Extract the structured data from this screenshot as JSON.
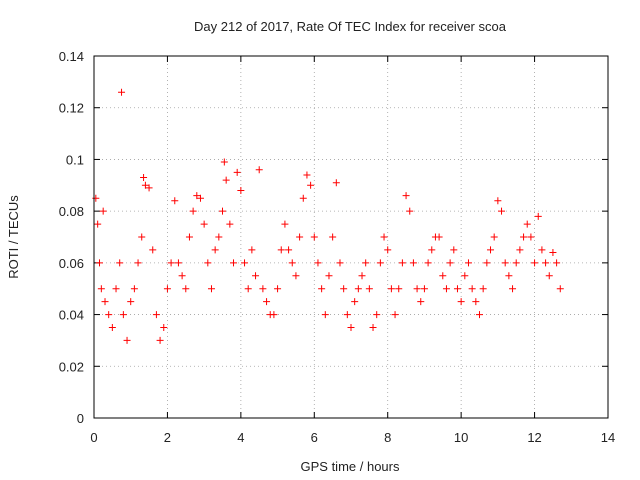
{
  "chart_data": {
    "type": "scatter",
    "title": "Day 212 of 2017, Rate Of TEC Index for receiver scoa",
    "xlabel": "GPS time / hours",
    "ylabel": "ROTI / TECUs",
    "xlim": [
      0,
      14
    ],
    "ylim": [
      0,
      0.14
    ],
    "x_ticks": [
      "0",
      "2",
      "4",
      "6",
      "8",
      "10",
      "12",
      "14"
    ],
    "y_ticks": [
      "0",
      "0.02",
      "0.04",
      "0.06",
      "0.08",
      "0.1",
      "0.12",
      "0.14"
    ],
    "grid": true,
    "marker": "+",
    "color": "#ff0000",
    "series": [
      {
        "x": [
          0.05,
          0.1,
          0.15,
          0.2,
          0.25,
          0.3,
          0.4,
          0.5,
          0.6,
          0.7,
          0.75,
          0.8,
          0.9,
          1.0,
          1.1,
          1.2,
          1.3,
          1.35,
          1.4,
          1.5,
          1.6,
          1.7,
          1.8,
          1.9,
          2.0,
          2.1,
          2.2,
          2.3,
          2.4,
          2.5,
          2.6,
          2.7,
          2.8,
          2.9,
          3.0,
          3.1,
          3.2,
          3.3,
          3.4,
          3.5,
          3.55,
          3.6,
          3.7,
          3.8,
          3.9,
          4.0,
          4.1,
          4.2,
          4.3,
          4.4,
          4.5,
          4.6,
          4.7,
          4.8,
          4.9,
          5.0,
          5.1,
          5.2,
          5.3,
          5.4,
          5.5,
          5.6,
          5.7,
          5.8,
          5.9,
          6.0,
          6.1,
          6.2,
          6.3,
          6.4,
          6.5,
          6.6,
          6.7,
          6.8,
          6.9,
          7.0,
          7.1,
          7.2,
          7.3,
          7.4,
          7.5,
          7.6,
          7.7,
          7.8,
          7.9,
          8.0,
          8.1,
          8.2,
          8.3,
          8.4,
          8.5,
          8.6,
          8.7,
          8.8,
          8.9,
          9.0,
          9.1,
          9.2,
          9.3,
          9.4,
          9.5,
          9.6,
          9.7,
          9.8,
          9.9,
          10.0,
          10.1,
          10.2,
          10.3,
          10.4,
          10.5,
          10.6,
          10.7,
          10.8,
          10.9,
          11.0,
          11.1,
          11.2,
          11.3,
          11.4,
          11.5,
          11.6,
          11.7,
          11.8,
          11.9,
          12.0,
          12.1,
          12.2,
          12.3,
          12.4,
          12.5,
          12.6,
          12.7
        ],
        "y": [
          0.085,
          0.075,
          0.06,
          0.05,
          0.08,
          0.045,
          0.04,
          0.035,
          0.05,
          0.06,
          0.126,
          0.04,
          0.03,
          0.045,
          0.05,
          0.06,
          0.07,
          0.093,
          0.09,
          0.089,
          0.065,
          0.04,
          0.03,
          0.035,
          0.05,
          0.06,
          0.084,
          0.06,
          0.055,
          0.05,
          0.07,
          0.08,
          0.086,
          0.085,
          0.075,
          0.06,
          0.05,
          0.065,
          0.07,
          0.08,
          0.099,
          0.092,
          0.075,
          0.06,
          0.095,
          0.088,
          0.06,
          0.05,
          0.065,
          0.055,
          0.096,
          0.05,
          0.045,
          0.04,
          0.04,
          0.05,
          0.065,
          0.075,
          0.065,
          0.06,
          0.055,
          0.07,
          0.085,
          0.094,
          0.09,
          0.07,
          0.06,
          0.05,
          0.04,
          0.055,
          0.07,
          0.091,
          0.06,
          0.05,
          0.04,
          0.035,
          0.045,
          0.05,
          0.055,
          0.06,
          0.05,
          0.035,
          0.04,
          0.06,
          0.07,
          0.065,
          0.05,
          0.04,
          0.05,
          0.06,
          0.086,
          0.08,
          0.06,
          0.05,
          0.045,
          0.05,
          0.06,
          0.065,
          0.07,
          0.07,
          0.055,
          0.05,
          0.06,
          0.065,
          0.05,
          0.045,
          0.055,
          0.06,
          0.05,
          0.045,
          0.04,
          0.05,
          0.06,
          0.065,
          0.07,
          0.084,
          0.08,
          0.06,
          0.055,
          0.05,
          0.06,
          0.065,
          0.07,
          0.075,
          0.07,
          0.06,
          0.078,
          0.065,
          0.06,
          0.055,
          0.064,
          0.06,
          0.05
        ]
      }
    ]
  }
}
